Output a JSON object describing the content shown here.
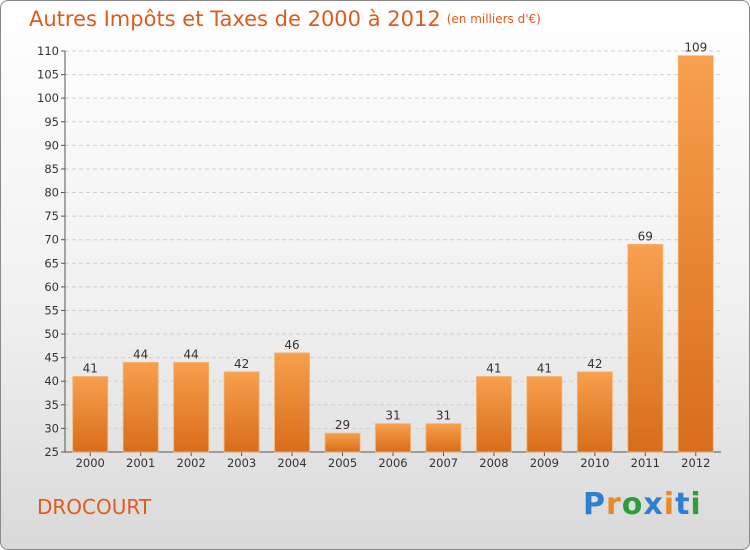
{
  "header": {
    "title": "Autres Impôts et Taxes de 2000 à 2012",
    "unit": "(en milliers d'€)"
  },
  "footer": {
    "city": "DROCOURT",
    "logo": [
      "P",
      "r",
      "o",
      "x",
      "i",
      "t",
      "i"
    ]
  },
  "colors": {
    "accent": "#e05a1c",
    "bar_light": "#f7a04e",
    "bar_dark": "#d86d1a",
    "logo": [
      "#2f7fd0",
      "#e8892a",
      "#2f9e3a",
      "#2f7fd0",
      "#e8892a",
      "#2f7fd0",
      "#2f9e3a"
    ]
  },
  "chart_data": {
    "type": "bar",
    "categories": [
      "2000",
      "2001",
      "2002",
      "2003",
      "2004",
      "2005",
      "2006",
      "2007",
      "2008",
      "2009",
      "2010",
      "2011",
      "2012"
    ],
    "values": [
      41,
      44,
      44,
      42,
      46,
      29,
      31,
      31,
      41,
      41,
      42,
      69,
      109
    ],
    "ylim": [
      25,
      110
    ],
    "yticks": [
      25,
      30,
      35,
      40,
      45,
      50,
      55,
      60,
      65,
      70,
      75,
      80,
      85,
      90,
      95,
      100,
      105,
      110
    ],
    "grid": true,
    "legend": "none"
  }
}
